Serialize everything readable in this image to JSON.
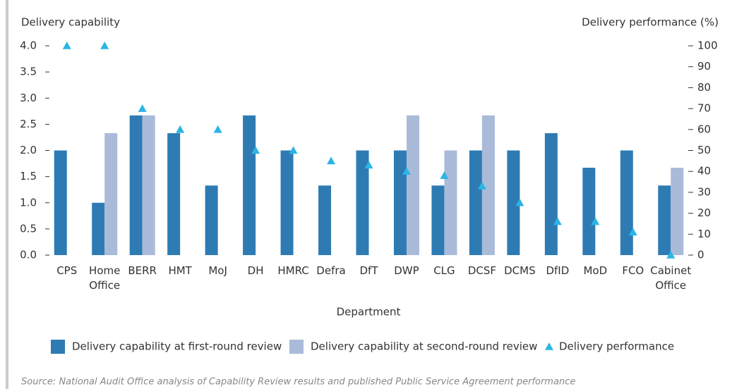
{
  "chart_data": {
    "type": "bar",
    "y_label": "Delivery capability",
    "y2_label": "Delivery performance (%)",
    "x_label": "Department",
    "source": "Source: National Audit Office analysis of Capability Review results and published Public Service Agreement performance",
    "categories": [
      "CPS",
      "Home Office",
      "BERR",
      "HMT",
      "MoJ",
      "DH",
      "HMRC",
      "Defra",
      "DfT",
      "DWP",
      "CLG",
      "DCSF",
      "DCMS",
      "DfID",
      "MoD",
      "FCO",
      "Cabinet Office"
    ],
    "series": [
      {
        "name": "Delivery capability at first-round review",
        "color": "#2e7bb4",
        "values": [
          2.0,
          1.0,
          2.67,
          2.33,
          1.33,
          2.67,
          2.0,
          1.33,
          2.0,
          2.0,
          1.33,
          2.0,
          2.0,
          2.33,
          1.67,
          2.0,
          1.33
        ]
      },
      {
        "name": "Delivery capability at second-round review",
        "color": "#a9bbd9",
        "values": [
          null,
          2.33,
          2.67,
          null,
          null,
          null,
          null,
          null,
          null,
          2.67,
          2.0,
          2.67,
          null,
          null,
          null,
          null,
          1.67
        ]
      },
      {
        "name": "Delivery performance",
        "color": "#2bb5e5",
        "axis": "y2",
        "marker": "triangle",
        "values": [
          100,
          100,
          70,
          60,
          60,
          50,
          50,
          45,
          43,
          40,
          38,
          33,
          25,
          16,
          16,
          11,
          0
        ]
      }
    ],
    "ylim": [
      0,
      4
    ],
    "yticks": [
      {
        "value": 0,
        "label": "0.0"
      },
      {
        "value": 0.5,
        "label": "0.5"
      },
      {
        "value": 1,
        "label": "1.0"
      },
      {
        "value": 1.5,
        "label": "1.5"
      },
      {
        "value": 2,
        "label": "2.0"
      },
      {
        "value": 2.5,
        "label": "2.5"
      },
      {
        "value": 3,
        "label": "3.0"
      },
      {
        "value": 3.5,
        "label": "3.5"
      },
      {
        "value": 4,
        "label": "4.0"
      }
    ],
    "y2lim": [
      0,
      100
    ],
    "y2ticks": [
      0,
      10,
      20,
      30,
      40,
      50,
      60,
      70,
      80,
      90,
      100
    ],
    "grid": false
  }
}
